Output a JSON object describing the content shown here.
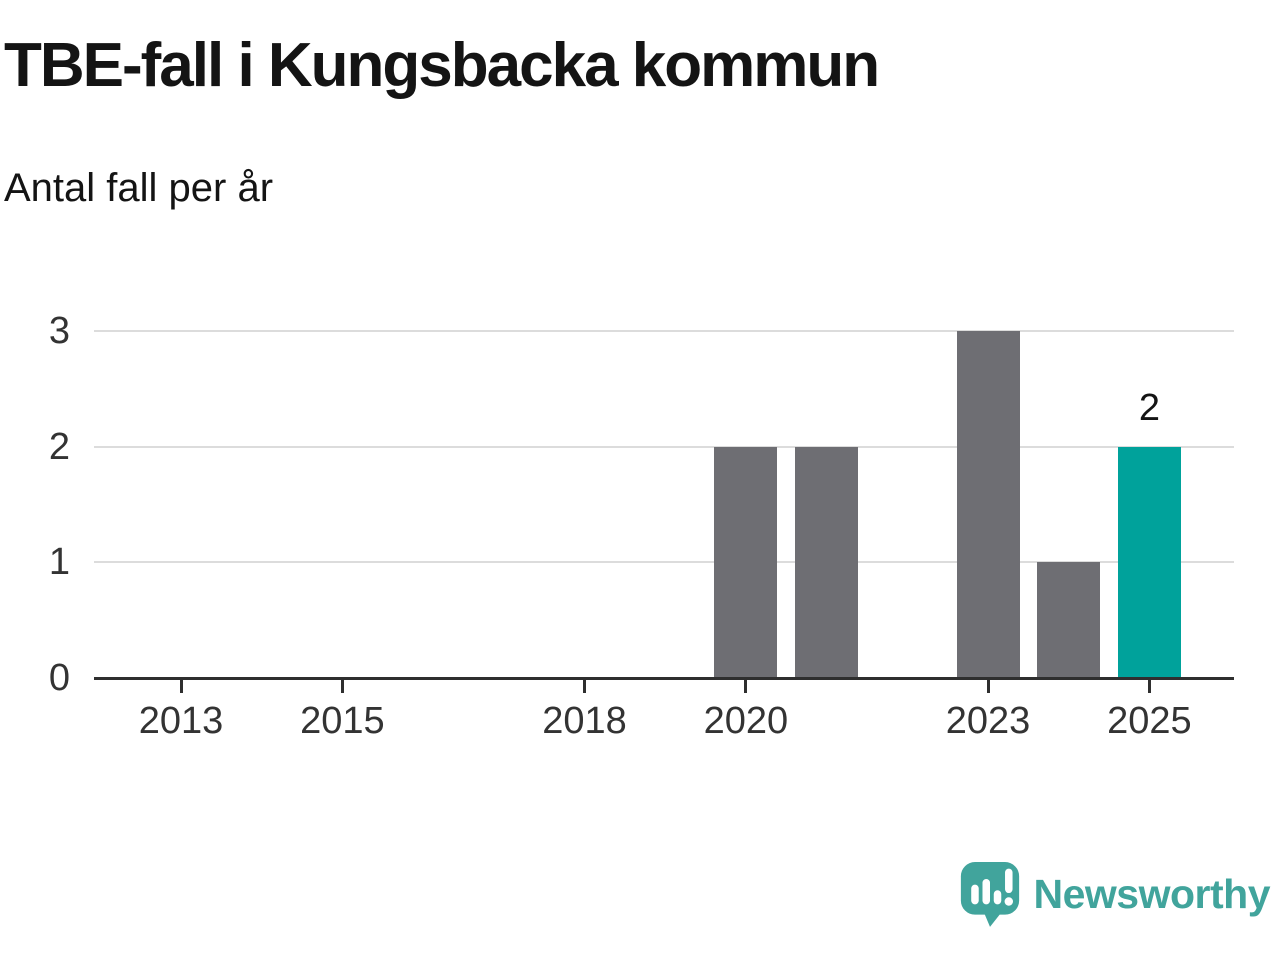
{
  "chart_data": {
    "type": "bar",
    "title": "TBE-fall i Kungsbacka kommun",
    "subtitle": "Antal fall per år",
    "categories": [
      "2012",
      "2013",
      "2014",
      "2015",
      "2016",
      "2017",
      "2018",
      "2019",
      "2020",
      "2021",
      "2022",
      "2023",
      "2024",
      "2025"
    ],
    "values": [
      0,
      0,
      0,
      0,
      0,
      0,
      0,
      0,
      2,
      2,
      0,
      3,
      1,
      2
    ],
    "highlight_category": "2025",
    "value_labels": [
      {
        "category": "2025",
        "text": "2"
      }
    ],
    "x_tick_labels": [
      "2013",
      "2015",
      "2018",
      "2020",
      "2023",
      "2025"
    ],
    "y_tick_labels": [
      "0",
      "1",
      "2",
      "3"
    ],
    "ylim": [
      0,
      3
    ],
    "grid": "horizontal",
    "legend": "none",
    "xlabel": "",
    "ylabel": ""
  },
  "footer": {
    "brand": "Newsworthy",
    "logo_icon": "speech-bubble-with-bar-chart-and-exclamation"
  },
  "colors": {
    "background": "#ffffff",
    "text": "#141414",
    "axis_text": "#333333",
    "axis": "#2f2f2f",
    "gridline": "#dcdcdc",
    "bar_default": "#6e6e73",
    "bar_highlight": "#00a29b",
    "logo": "#41a49c"
  }
}
